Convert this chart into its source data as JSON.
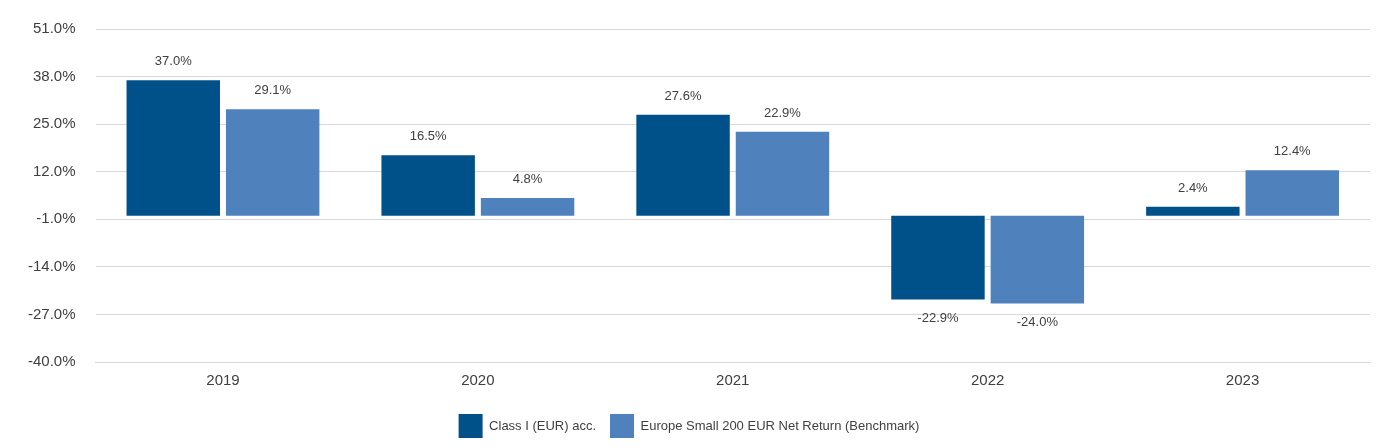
{
  "chart_data": {
    "type": "bar",
    "categories": [
      "2019",
      "2020",
      "2021",
      "2022",
      "2023"
    ],
    "series": [
      {
        "name": "Class I (EUR) acc.",
        "color": "#00508a",
        "values": [
          37.0,
          16.5,
          27.6,
          -22.9,
          2.4
        ],
        "value_labels": [
          "37.0%",
          "16.5%",
          "27.6%",
          "-22.9%",
          "2.4%"
        ]
      },
      {
        "name": "Europe Small 200 EUR Net Return (Benchmark)",
        "color": "#4f81bd",
        "values": [
          29.1,
          4.8,
          22.9,
          -24.0,
          12.4
        ],
        "value_labels": [
          "29.1%",
          "4.8%",
          "22.9%",
          "-24.0%",
          "12.4%"
        ]
      }
    ],
    "ylim": [
      -40,
      51
    ],
    "yticks": [
      {
        "value": -40,
        "label": "-40.0%"
      },
      {
        "value": -27,
        "label": "-27.0%"
      },
      {
        "value": -14,
        "label": "-14.0%"
      },
      {
        "value": -1,
        "label": "-1.0%"
      },
      {
        "value": 12,
        "label": "12.0%"
      },
      {
        "value": 25,
        "label": "25.0%"
      },
      {
        "value": 38,
        "label": "38.0%"
      },
      {
        "value": 51,
        "label": "51.0%"
      }
    ],
    "grid": "y",
    "legend": "bottom"
  }
}
